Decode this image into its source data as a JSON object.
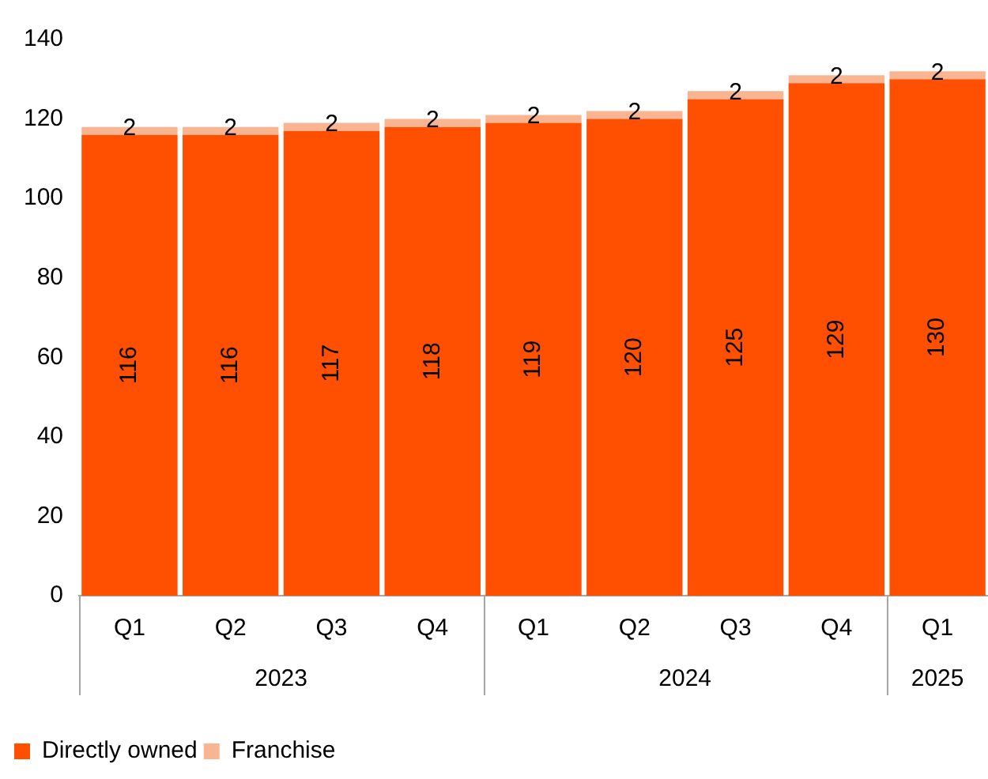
{
  "chart_data": {
    "type": "bar",
    "stacked": true,
    "categories": [
      "Q1",
      "Q2",
      "Q3",
      "Q4",
      "Q1",
      "Q2",
      "Q3",
      "Q4",
      "Q1"
    ],
    "series": [
      {
        "name": "Directly owned",
        "color": "#fe5000",
        "values": [
          116,
          116,
          117,
          118,
          119,
          120,
          125,
          129,
          130
        ]
      },
      {
        "name": "Franchise",
        "color": "#f9b592",
        "values": [
          2,
          2,
          2,
          2,
          2,
          2,
          2,
          2,
          2
        ]
      }
    ],
    "ylim": [
      0,
      140
    ],
    "yticks": [
      0,
      20,
      40,
      60,
      80,
      100,
      120,
      140
    ],
    "grid": false,
    "legend": "bottom left",
    "data_labels": true,
    "annotations": [
      "2023",
      "2024",
      "2025"
    ]
  }
}
